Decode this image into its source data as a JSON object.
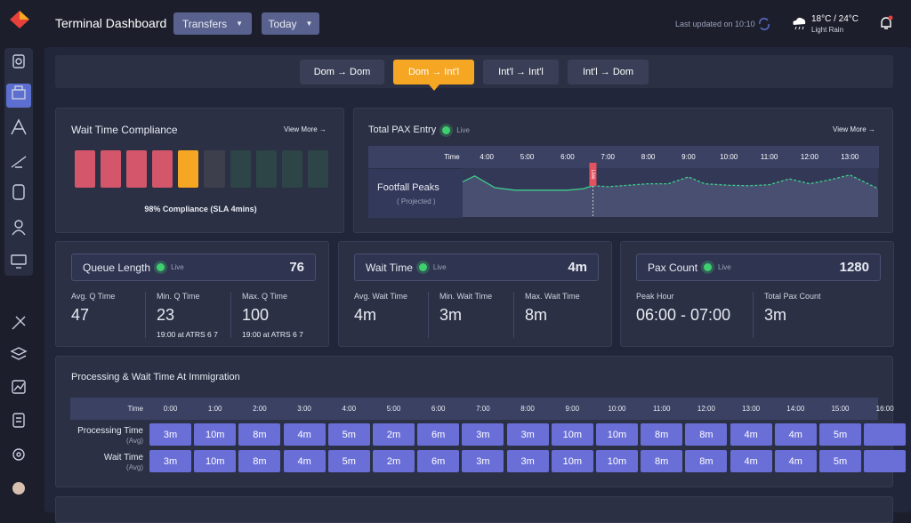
{
  "header": {
    "title": "Terminal Dashboard",
    "filters": [
      "Transfers",
      "Today"
    ],
    "last_updated": "Last updated on 10:10",
    "weather": {
      "temp": "18°C / 24°C",
      "condition": "Light Rain"
    }
  },
  "tabs": {
    "items": [
      "Dom → Dom",
      "Dom → Int'l",
      "Int'l → Int'l",
      "Int'l → Dom"
    ],
    "active": 1
  },
  "compliance": {
    "title": "Wait Time Compliance",
    "link": "View More →",
    "bars": [
      "#d4566b",
      "#d4566b",
      "#d4566b",
      "#d4566b",
      "#f5a623",
      "#3d3f4c",
      "#2d4547",
      "#2d4547",
      "#2d4547",
      "#2d4547"
    ],
    "summary": "98% Compliance (SLA 4mins)"
  },
  "pax_entry": {
    "title": "Total PAX Entry",
    "status": "Live",
    "link": "View More →",
    "row_label": "Footfall Peaks",
    "row_sublabel": "( Projected )",
    "live_tag": "Live",
    "chart": {
      "type": "line",
      "x_label": "Time",
      "xlim": [
        3.4,
        13.7
      ],
      "ylim": [
        0,
        100
      ],
      "xticks": [
        {
          "value": 4,
          "label": "4:00"
        },
        {
          "value": 5,
          "label": "5:00"
        },
        {
          "value": 6,
          "label": "6:00"
        },
        {
          "value": 7,
          "label": "7:00"
        },
        {
          "value": 8,
          "label": "8:00"
        },
        {
          "value": 9,
          "label": "9:00"
        },
        {
          "value": 10,
          "label": "10:00"
        },
        {
          "value": 11,
          "label": "11:00"
        },
        {
          "value": 12,
          "label": "12:00"
        },
        {
          "value": 13,
          "label": "13:00"
        }
      ],
      "series": [
        {
          "color": "#3ecf8e",
          "dashed": false,
          "x": [
            3.4,
            3.7,
            4.2,
            4.7,
            5.0,
            5.5,
            6.0,
            6.4,
            6.63
          ],
          "values": [
            72,
            84,
            60,
            55,
            55,
            55,
            55,
            58,
            64
          ]
        },
        {
          "color": "#3ecf8e",
          "dashed": true,
          "x": [
            6.63,
            7.0,
            7.5,
            8.0,
            8.5,
            9.0,
            9.4,
            10.0,
            10.5,
            11.0,
            11.5,
            12.0,
            12.5,
            13.0,
            13.7
          ],
          "values": [
            64,
            62,
            65,
            68,
            68,
            82,
            68,
            65,
            64,
            66,
            78,
            68,
            76,
            86,
            58
          ]
        }
      ]
    }
  },
  "kpis": [
    {
      "title": "Queue Length",
      "status": "Live",
      "value": 76,
      "stats": [
        {
          "label": "Avg. Q Time",
          "value": 47
        },
        {
          "label": "Min. Q Time",
          "value": 23,
          "note": "19:00 at ATRS 6 7"
        },
        {
          "label": "Max. Q Time",
          "value": 100,
          "note": "19:00 at ATRS 6 7"
        }
      ]
    },
    {
      "title": "Wait Time",
      "status": "Live",
      "value": "4m",
      "stats": [
        {
          "label": "Avg. Wait Time",
          "value": "4m"
        },
        {
          "label": "Min. Wait Time",
          "value": "3m"
        },
        {
          "label": "Max. Wait Time",
          "value": "8m"
        }
      ]
    },
    {
      "title": "Pax Count",
      "status": "Live",
      "value": 1280,
      "stats": [
        {
          "label": "Peak Hour",
          "value": "06:00 - 07:00"
        },
        {
          "label": "Total Pax Count",
          "value": "3m"
        }
      ]
    }
  ],
  "immigration": {
    "title": "Processing & Wait Time At Immigration",
    "time_label": "Time",
    "times": [
      "0:00",
      "1:00",
      "2:00",
      "3:00",
      "4:00",
      "5:00",
      "6:00",
      "7:00",
      "8:00",
      "9:00",
      "10:00",
      "11:00",
      "12:00",
      "13:00",
      "14:00",
      "15:00",
      "16:00"
    ],
    "rows": [
      {
        "label": "Processing Time",
        "sublabel": "(Avg)",
        "values": [
          "3m",
          "10m",
          "8m",
          "4m",
          "5m",
          "2m",
          "6m",
          "3m",
          "3m",
          "10m",
          "10m",
          "8m",
          "8m",
          "4m",
          "4m",
          "5m",
          null
        ]
      },
      {
        "label": "Wait Time",
        "sublabel": "(Avg)",
        "values": [
          "3m",
          "10m",
          "8m",
          "4m",
          "5m",
          "2m",
          "6m",
          "3m",
          "3m",
          "10m",
          "10m",
          "8m",
          "8m",
          "4m",
          "4m",
          "5m",
          null
        ]
      }
    ]
  }
}
